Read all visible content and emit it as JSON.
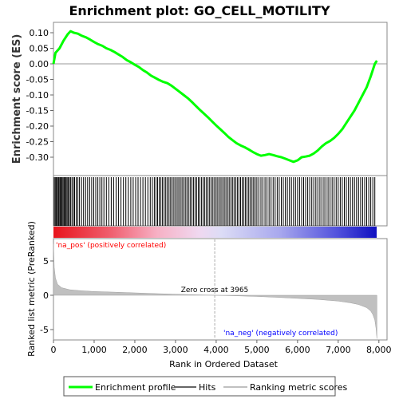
{
  "chart_data": [
    {
      "type": "line",
      "title": "Enrichment plot: GO_CELL_MOTILITY",
      "ylabel": "Enrichment score (ES)",
      "ylim": [
        -0.34,
        0.12
      ],
      "yticks": [
        "0.10",
        "0.05",
        "0.00",
        "-0.05",
        "-0.10",
        "-0.15",
        "-0.20",
        "-0.25",
        "-0.30"
      ],
      "ytick_values": [
        0.1,
        0.05,
        0.0,
        -0.05,
        -0.1,
        -0.15,
        -0.2,
        -0.25,
        -0.3
      ],
      "xlim": [
        0,
        8200
      ],
      "grid": false,
      "series": [
        {
          "name": "Enrichment profile",
          "color": "#00ff00",
          "x": [
            0,
            50,
            150,
            250,
            350,
            420,
            500,
            600,
            700,
            800,
            900,
            1000,
            1100,
            1200,
            1300,
            1400,
            1500,
            1600,
            1700,
            1800,
            1900,
            2000,
            2100,
            2200,
            2300,
            2400,
            2500,
            2600,
            2700,
            2800,
            2900,
            3000,
            3100,
            3200,
            3300,
            3400,
            3500,
            3600,
            3700,
            3800,
            3900,
            4000,
            4100,
            4200,
            4300,
            4400,
            4500,
            4600,
            4700,
            4800,
            4900,
            5000,
            5100,
            5200,
            5300,
            5400,
            5500,
            5600,
            5700,
            5800,
            5900,
            6000,
            6100,
            6200,
            6300,
            6400,
            6500,
            6600,
            6700,
            6800,
            6900,
            7000,
            7100,
            7200,
            7300,
            7400,
            7500,
            7600,
            7700,
            7800,
            7900,
            7950
          ],
          "y": [
            0.0,
            0.035,
            0.05,
            0.075,
            0.095,
            0.105,
            0.1,
            0.097,
            0.09,
            0.085,
            0.078,
            0.07,
            0.063,
            0.058,
            0.05,
            0.045,
            0.038,
            0.03,
            0.022,
            0.012,
            0.005,
            -0.003,
            -0.01,
            -0.02,
            -0.028,
            -0.038,
            -0.045,
            -0.052,
            -0.058,
            -0.062,
            -0.07,
            -0.08,
            -0.09,
            -0.1,
            -0.11,
            -0.122,
            -0.135,
            -0.148,
            -0.16,
            -0.172,
            -0.185,
            -0.198,
            -0.21,
            -0.222,
            -0.235,
            -0.245,
            -0.255,
            -0.262,
            -0.268,
            -0.275,
            -0.283,
            -0.29,
            -0.295,
            -0.293,
            -0.29,
            -0.293,
            -0.297,
            -0.3,
            -0.305,
            -0.31,
            -0.315,
            -0.31,
            -0.3,
            -0.298,
            -0.295,
            -0.288,
            -0.278,
            -0.265,
            -0.255,
            -0.248,
            -0.238,
            -0.225,
            -0.21,
            -0.19,
            -0.17,
            -0.15,
            -0.125,
            -0.1,
            -0.075,
            -0.04,
            0.0,
            0.01
          ]
        }
      ]
    },
    {
      "type": "bar",
      "title": "",
      "series": [
        {
          "name": "Hits",
          "color": "#000000",
          "x": [
            20,
            45,
            70,
            95,
            120,
            140,
            165,
            190,
            210,
            235,
            260,
            285,
            310,
            335,
            360,
            390,
            420,
            455,
            490,
            520,
            560,
            600,
            640,
            690,
            740,
            790,
            840,
            890,
            940,
            990,
            1040,
            1090,
            1140,
            1190,
            1240,
            1300,
            1360,
            1420,
            1480,
            1540,
            1600,
            1660,
            1720,
            1780,
            1840,
            1900,
            1960,
            2020,
            2080,
            2140,
            2200,
            2260,
            2320,
            2380,
            2430,
            2480,
            2520,
            2560,
            2600,
            2640,
            2680,
            2720,
            2760,
            2800,
            2840,
            2880,
            2920,
            2960,
            3000,
            3040,
            3080,
            3120,
            3160,
            3200,
            3240,
            3280,
            3320,
            3360,
            3400,
            3440,
            3480,
            3520,
            3560,
            3600,
            3640,
            3680,
            3720,
            3760,
            3800,
            3840,
            3880,
            3920,
            3960,
            4000,
            4040,
            4080,
            4120,
            4160,
            4200,
            4240,
            4280,
            4320,
            4360,
            4400,
            4440,
            4480,
            4520,
            4560,
            4600,
            4640,
            4680,
            4720,
            4760,
            4800,
            4840,
            4880,
            4920,
            4960,
            5000,
            5050,
            5100,
            5150,
            5200,
            5250,
            5300,
            5350,
            5400,
            5450,
            5500,
            5550,
            5600,
            5650,
            5700,
            5750,
            5800,
            5850,
            5900,
            5950,
            6000,
            6050,
            6100,
            6150,
            6200,
            6250,
            6300,
            6350,
            6400,
            6450,
            6500,
            6550,
            6600,
            6650,
            6700,
            6750,
            6800,
            6850,
            6900,
            6950,
            7000,
            7050,
            7100,
            7150,
            7200,
            7250,
            7300,
            7350,
            7400,
            7450,
            7500,
            7550,
            7600,
            7650,
            7700,
            7750,
            7800,
            7850,
            7900
          ]
        }
      ]
    },
    {
      "type": "area",
      "title": "",
      "ylabel": "Ranked list metric (PreRanked)",
      "xlabel": "Rank in Ordered Dataset",
      "ylim": [
        -6.5,
        8
      ],
      "yticks": [
        "5",
        "0",
        "-5"
      ],
      "ytick_values": [
        5,
        0,
        -5
      ],
      "xlim": [
        0,
        8200
      ],
      "xticks": [
        "0",
        "1,000",
        "2,000",
        "3,000",
        "4,000",
        "5,000",
        "6,000",
        "7,000",
        "8,000"
      ],
      "xtick_values": [
        0,
        1000,
        2000,
        3000,
        4000,
        5000,
        6000,
        7000,
        8000
      ],
      "grid": false,
      "series": [
        {
          "name": "Ranking metric scores",
          "color": "#c0c0c0",
          "x": [
            0,
            20,
            50,
            100,
            200,
            400,
            700,
            1000,
            1500,
            2000,
            2500,
            3000,
            3500,
            3965,
            4500,
            5000,
            5500,
            6000,
            6500,
            7000,
            7300,
            7500,
            7700,
            7800,
            7850,
            7900,
            7930,
            7950
          ],
          "y": [
            7.5,
            4.0,
            2.5,
            1.6,
            1.1,
            0.8,
            0.65,
            0.55,
            0.45,
            0.35,
            0.25,
            0.15,
            0.07,
            0.0,
            -0.08,
            -0.18,
            -0.3,
            -0.45,
            -0.6,
            -0.85,
            -1.1,
            -1.35,
            -1.8,
            -2.3,
            -2.8,
            -3.6,
            -4.8,
            -6.3
          ]
        }
      ],
      "annotations": [
        {
          "text": "'na_pos' (positively correlated)",
          "color": "#ff0000",
          "x": 0
        },
        {
          "text": "Zero cross at 3965",
          "color": "#000000",
          "x": 3965
        },
        {
          "text": "'na_neg' (negatively correlated)",
          "color": "#0000ff",
          "x": 4200
        }
      ],
      "zero_cross": 3965
    }
  ],
  "legend": {
    "placement": "bottom",
    "items": [
      {
        "label": "Enrichment profile",
        "color": "#00ff00"
      },
      {
        "label": "Hits",
        "color": "#000000"
      },
      {
        "label": "Ranking metric scores",
        "color": "#c0c0c0"
      }
    ]
  }
}
